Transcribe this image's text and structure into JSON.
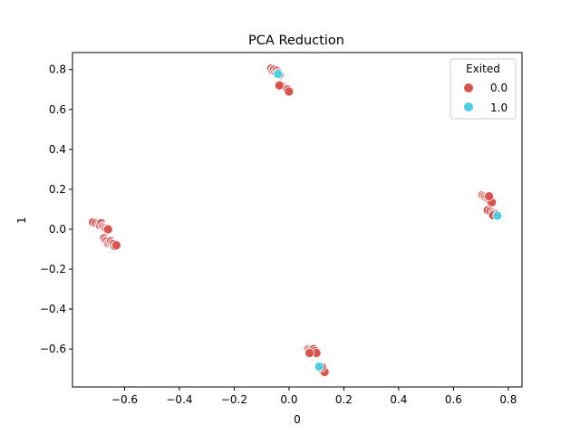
{
  "chart_data": {
    "type": "scatter",
    "title": "PCA Reduction",
    "xlabel": "0",
    "ylabel": "1",
    "xlim": [
      -0.79,
      0.85
    ],
    "ylim": [
      -0.79,
      0.885
    ],
    "x_ticks": [
      -0.6,
      -0.4,
      -0.2,
      0.0,
      0.2,
      0.4,
      0.6,
      0.8
    ],
    "x_tick_labels": [
      "−0.6",
      "−0.4",
      "−0.2",
      "0.0",
      "0.2",
      "0.4",
      "0.6",
      "0.8"
    ],
    "y_ticks": [
      -0.6,
      -0.4,
      -0.2,
      0.0,
      0.2,
      0.4,
      0.6,
      0.8
    ],
    "y_tick_labels": [
      "−0.6",
      "−0.4",
      "−0.2",
      "0.0",
      "0.2",
      "0.4",
      "0.6",
      "0.8"
    ],
    "grid": false,
    "legend": {
      "title": "Exited",
      "placement": "top-right",
      "entries": [
        {
          "label": "0.0",
          "color": "#d9534f"
        },
        {
          "label": "1.0",
          "color": "#4dd0e1"
        }
      ]
    },
    "series": [
      {
        "name": "0.0",
        "color": "#d9534f",
        "points": [
          [
            -0.715,
            0.035
          ],
          [
            -0.705,
            0.03
          ],
          [
            -0.695,
            0.025
          ],
          [
            -0.69,
            0.02
          ],
          [
            -0.685,
            0.03
          ],
          [
            -0.68,
            0.015
          ],
          [
            -0.675,
            0.01
          ],
          [
            -0.67,
            0.005
          ],
          [
            -0.665,
            0.0
          ],
          [
            -0.66,
            0.0
          ],
          [
            -0.675,
            -0.045
          ],
          [
            -0.67,
            -0.055
          ],
          [
            -0.665,
            -0.06
          ],
          [
            -0.66,
            -0.07
          ],
          [
            -0.655,
            -0.065
          ],
          [
            -0.65,
            -0.06
          ],
          [
            -0.645,
            -0.07
          ],
          [
            -0.64,
            -0.075
          ],
          [
            -0.635,
            -0.085
          ],
          [
            -0.63,
            -0.08
          ],
          [
            -0.065,
            0.805
          ],
          [
            -0.06,
            0.795
          ],
          [
            -0.055,
            0.8
          ],
          [
            -0.05,
            0.79
          ],
          [
            -0.045,
            0.795
          ],
          [
            -0.04,
            0.785
          ],
          [
            -0.035,
            0.775
          ],
          [
            -0.03,
            0.725
          ],
          [
            -0.025,
            0.72
          ],
          [
            -0.02,
            0.715
          ],
          [
            -0.015,
            0.71
          ],
          [
            -0.01,
            0.705
          ],
          [
            -0.005,
            0.7
          ],
          [
            0.0,
            0.69
          ],
          [
            -0.035,
            0.72
          ],
          [
            0.07,
            -0.6
          ],
          [
            0.075,
            -0.605
          ],
          [
            0.08,
            -0.61
          ],
          [
            0.085,
            -0.615
          ],
          [
            0.09,
            -0.6
          ],
          [
            0.095,
            -0.61
          ],
          [
            0.1,
            -0.62
          ],
          [
            0.075,
            -0.62
          ],
          [
            0.11,
            -0.695
          ],
          [
            0.115,
            -0.7
          ],
          [
            0.12,
            -0.705
          ],
          [
            0.125,
            -0.71
          ],
          [
            0.13,
            -0.715
          ],
          [
            0.12,
            -0.69
          ],
          [
            0.705,
            0.17
          ],
          [
            0.71,
            0.165
          ],
          [
            0.715,
            0.16
          ],
          [
            0.72,
            0.155
          ],
          [
            0.725,
            0.15
          ],
          [
            0.73,
            0.145
          ],
          [
            0.735,
            0.14
          ],
          [
            0.74,
            0.135
          ],
          [
            0.73,
            0.165
          ],
          [
            0.725,
            0.095
          ],
          [
            0.735,
            0.09
          ],
          [
            0.745,
            0.085
          ],
          [
            0.75,
            0.08
          ],
          [
            0.755,
            0.075
          ],
          [
            0.745,
            0.07
          ]
        ]
      },
      {
        "name": "1.0",
        "color": "#4dd0e1",
        "points": [
          [
            -0.04,
            0.778
          ],
          [
            0.11,
            -0.688
          ],
          [
            0.76,
            0.068
          ]
        ]
      }
    ]
  }
}
